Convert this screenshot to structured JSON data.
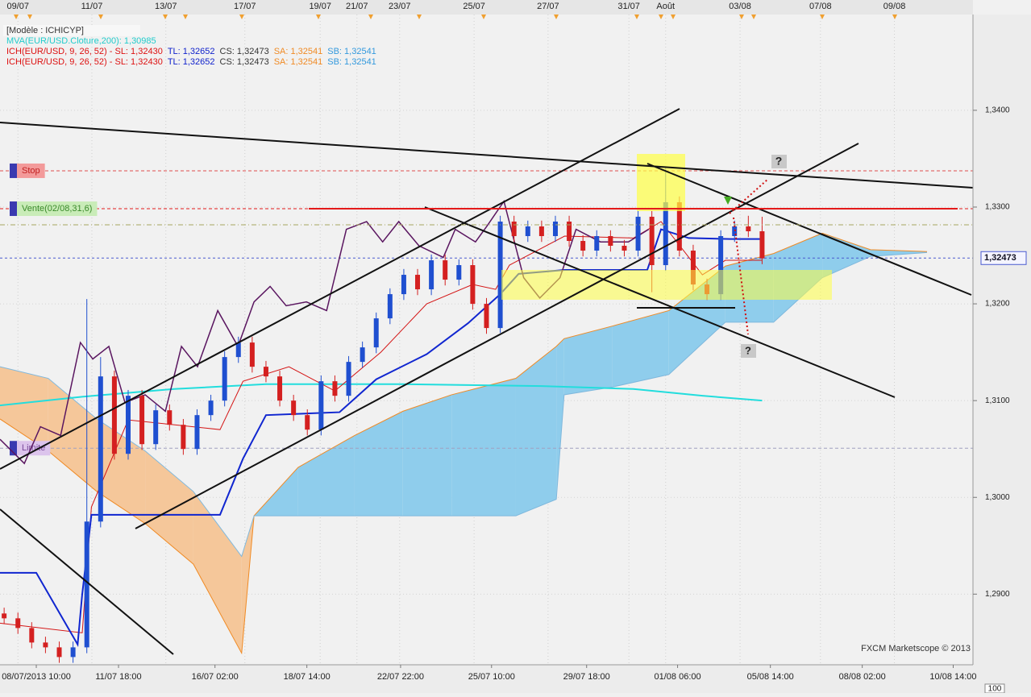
{
  "chart_data": {
    "type": "candlestick",
    "legend": [
      {
        "parts": [
          {
            "text": "[Modèle : ICHICYP]",
            "color": "#333333"
          }
        ]
      },
      {
        "parts": [
          {
            "text": "MVA(EUR/USD.Cloture,200): 1,30985",
            "color": "#22cccc"
          }
        ]
      },
      {
        "parts": [
          {
            "text": "ICH(EUR/USD, 9, 26, 52) -  SL: 1,32430",
            "color": "#dd1111"
          },
          {
            "text": "TL: 1,32652",
            "color": "#1122cc"
          },
          {
            "text": "CS: 1,32473",
            "color": "#333333"
          },
          {
            "text": "SA: 1,32541",
            "color": "#f08a24"
          },
          {
            "text": "SB: 1,32541",
            "color": "#3399dd"
          }
        ]
      },
      {
        "parts": [
          {
            "text": "ICH(EUR/USD, 9, 26, 52) -  SL: 1,32430",
            "color": "#dd1111"
          },
          {
            "text": "TL: 1,32652",
            "color": "#1122cc"
          },
          {
            "text": "CS: 1,32473",
            "color": "#333333"
          },
          {
            "text": "SA: 1,32541",
            "color": "#f08a24"
          },
          {
            "text": "SB: 1,32541",
            "color": "#3399dd"
          }
        ]
      }
    ],
    "up_color": "#1f4fd0",
    "down_color": "#d42020",
    "x": [
      -7,
      -4,
      -1,
      2,
      5,
      8,
      11,
      14,
      17,
      20,
      23,
      26,
      29,
      32,
      35,
      38,
      41,
      44,
      47,
      50,
      53,
      56,
      59,
      62,
      65,
      68,
      71,
      74,
      77,
      80,
      83,
      86,
      89,
      92,
      95,
      98,
      101,
      104,
      107,
      110,
      113,
      116,
      119,
      122,
      125,
      128,
      131,
      134,
      137,
      140,
      143,
      146,
      149,
      152,
      155,
      158
    ],
    "open": [
      1.288,
      1.2875,
      1.2865,
      1.285,
      1.2845,
      1.2835,
      1.2845,
      1.2975,
      1.3125,
      1.3045,
      1.3105,
      1.3055,
      1.309,
      1.3075,
      1.305,
      1.3085,
      1.31,
      1.3145,
      1.316,
      1.3135,
      1.3125,
      1.31,
      1.3085,
      1.307,
      1.312,
      1.3105,
      1.314,
      1.3155,
      1.3185,
      1.321,
      1.323,
      1.3215,
      1.3245,
      1.3225,
      1.324,
      1.32,
      1.3175,
      1.3285,
      1.327,
      1.328,
      1.327,
      1.3285,
      1.3265,
      1.3255,
      1.327,
      1.326,
      1.3255,
      1.329,
      1.324,
      1.3305,
      1.3255,
      1.322,
      1.321,
      1.327,
      1.328,
      1.3275
    ],
    "high": [
      1.2886,
      1.2881,
      1.2871,
      1.2856,
      1.2851,
      1.2851,
      1.3205,
      1.3145,
      1.3131,
      1.3111,
      1.3111,
      1.3096,
      1.3096,
      1.3081,
      1.3091,
      1.3106,
      1.3151,
      1.3166,
      1.3166,
      1.3141,
      1.3131,
      1.3106,
      1.3091,
      1.3126,
      1.3126,
      1.3146,
      1.3161,
      1.3191,
      1.3216,
      1.3236,
      1.3236,
      1.3251,
      1.3251,
      1.3246,
      1.3246,
      1.3206,
      1.3291,
      1.3291,
      1.3286,
      1.3286,
      1.3291,
      1.3291,
      1.3271,
      1.3276,
      1.3276,
      1.3266,
      1.3296,
      1.3296,
      1.3342,
      1.3311,
      1.3261,
      1.3226,
      1.3276,
      1.3286,
      1.3291,
      1.329
    ],
    "low": [
      1.2869,
      1.2859,
      1.2844,
      1.2839,
      1.2829,
      1.2829,
      1.2839,
      1.2969,
      1.3039,
      1.3039,
      1.3049,
      1.3049,
      1.3069,
      1.3044,
      1.3044,
      1.3079,
      1.3094,
      1.3139,
      1.3129,
      1.3119,
      1.3094,
      1.3079,
      1.3064,
      1.3064,
      1.3099,
      1.3099,
      1.3134,
      1.3149,
      1.3179,
      1.3204,
      1.3209,
      1.3209,
      1.3219,
      1.3219,
      1.3194,
      1.3169,
      1.317,
      1.3264,
      1.3264,
      1.3264,
      1.3264,
      1.3259,
      1.3249,
      1.3249,
      1.3254,
      1.3249,
      1.3249,
      1.3212,
      1.3234,
      1.3249,
      1.3214,
      1.3204,
      1.3204,
      1.3264,
      1.3269,
      1.3241
    ],
    "close": [
      1.2875,
      1.2865,
      1.285,
      1.2845,
      1.2835,
      1.2845,
      1.2975,
      1.3125,
      1.3045,
      1.3105,
      1.3055,
      1.309,
      1.3075,
      1.305,
      1.3085,
      1.31,
      1.3145,
      1.316,
      1.3135,
      1.3125,
      1.31,
      1.3085,
      1.307,
      1.312,
      1.3105,
      1.314,
      1.3155,
      1.3185,
      1.321,
      1.323,
      1.3215,
      1.3245,
      1.3225,
      1.324,
      1.32,
      1.3175,
      1.3285,
      1.327,
      1.328,
      1.327,
      1.3285,
      1.3265,
      1.3255,
      1.327,
      1.326,
      1.3255,
      1.329,
      1.324,
      1.3305,
      1.3255,
      1.322,
      1.321,
      1.327,
      1.328,
      1.3275,
      1.3247
    ],
    "cloud": {
      "x": [
        -7.9,
        2.6,
        13.2,
        23.7,
        34.2,
        44.7,
        47.4,
        57.0,
        69.3,
        79.8,
        90.4,
        104.4,
        113.2,
        114.9,
        125.4,
        137.7,
        150.0,
        160.5,
        171.1,
        181.6,
        193.9
      ],
      "sa": [
        1.3081,
        1.3048,
        1.3006,
        1.2973,
        1.2931,
        1.2839,
        1.2981,
        1.3031,
        1.3064,
        1.3089,
        1.3106,
        1.3123,
        1.3156,
        1.3164,
        1.3177,
        1.3193,
        1.3239,
        1.3252,
        1.3273,
        1.3256,
        1.3254
      ],
      "sb": [
        1.3135,
        1.3123,
        1.3081,
        1.3048,
        1.3006,
        1.2939,
        1.2981,
        1.2981,
        1.2981,
        1.2981,
        1.2981,
        1.2981,
        1.2998,
        1.3106,
        1.3114,
        1.3127,
        1.3181,
        1.3181,
        1.3227,
        1.3249,
        1.3253
      ],
      "sa_color": "#f08a24",
      "sb_color": "#7fb8dd",
      "up_fill": "#8fcdec",
      "down_fill": "#f5c79a"
    },
    "series": [
      {
        "color": "#22dddd",
        "width": 2,
        "x": [
          -8,
          10,
          30,
          50,
          80,
          110,
          130,
          145,
          158
        ],
        "values": [
          1.3095,
          1.3104,
          1.3112,
          1.3117,
          1.3117,
          1.3115,
          1.3112,
          1.3105,
          1.31
        ]
      },
      {
        "color": "#d41414",
        "width": 1,
        "x": [
          -8,
          10,
          12,
          20,
          40,
          45,
          55,
          65,
          75,
          85,
          95,
          100,
          103,
          115,
          130,
          136,
          145,
          150,
          158
        ],
        "values": [
          1.287,
          1.286,
          1.299,
          1.308,
          1.307,
          1.312,
          1.3135,
          1.311,
          1.315,
          1.32,
          1.322,
          1.3215,
          1.324,
          1.327,
          1.3268,
          1.3285,
          1.323,
          1.3245,
          1.3245
        ]
      },
      {
        "color": "#1026d0",
        "width": 2,
        "x": [
          -8,
          0,
          9,
          10,
          12,
          40,
          45,
          50,
          66,
          74,
          85,
          94,
          101,
          105,
          115,
          133,
          136,
          142,
          151,
          158
        ],
        "values": [
          1.2922,
          1.2922,
          1.2848,
          1.29,
          1.2982,
          1.2982,
          1.304,
          1.3085,
          1.3088,
          1.3122,
          1.3148,
          1.318,
          1.321,
          1.3231,
          1.3235,
          1.3235,
          1.3277,
          1.3268,
          1.3267,
          1.3267
        ]
      },
      {
        "color": "#5a1660",
        "width": 1.5,
        "x": [
          -7.9,
          -2.6,
          0.9,
          5.3,
          9.6,
          12.3,
          15.8,
          19.3,
          23.7,
          28.1,
          31.6,
          35.1,
          39.5,
          43.9,
          47.4,
          50.9,
          54.4,
          58.8,
          63.2,
          67.5,
          71.9,
          75.4,
          78.9,
          83.3,
          88.6,
          91.2,
          95.6,
          98.2,
          101.8,
          106.1,
          109.6,
          114.0,
          117.5,
          122.8,
          128.9,
          133.3
        ],
        "values": [
          1.306,
          1.3035,
          1.3073,
          1.3064,
          1.316,
          1.3143,
          1.3156,
          1.3098,
          1.3106,
          1.3089,
          1.3156,
          1.3135,
          1.3193,
          1.3156,
          1.3202,
          1.3218,
          1.3198,
          1.3202,
          1.3193,
          1.3277,
          1.3285,
          1.3264,
          1.3285,
          1.326,
          1.3248,
          1.3277,
          1.3264,
          1.3281,
          1.3306,
          1.3227,
          1.3206,
          1.3227,
          1.3277,
          1.3264,
          1.3264,
          1.3277
        ]
      }
    ],
    "levels": [
      {
        "label": "Stop",
        "value": 1.33375,
        "color": "#e05050",
        "label_bg": "#f39a9a",
        "label_color": "#c02020"
      },
      {
        "label": "Vente(02/08,31,6)",
        "value": 1.32983,
        "color": "#e41a1a",
        "label_bg": "#c9ecb8",
        "label_color": "#3a8a2a"
      },
      {
        "label": "Limite",
        "value": 1.30508,
        "color": "#a0a0c0",
        "label_bg": "#dcc4ec",
        "label_color": "#7a4a9a"
      }
    ],
    "current_price": {
      "value": 1.32473,
      "label": "1,32473",
      "color": "#4a5ad0"
    },
    "xlim": [
      -7.9,
      203.9
    ],
    "ylim": [
      1.2827,
      1.3499
    ],
    "xticks": [
      {
        "value": 0,
        "label": "08/07/2013 10:00"
      },
      {
        "value": 17.9,
        "label": "11/07 18:00"
      },
      {
        "value": 38.9,
        "label": "16/07 02:00"
      },
      {
        "value": 58.9,
        "label": "18/07 14:00"
      },
      {
        "value": 79.3,
        "label": "22/07 22:00"
      },
      {
        "value": 99.1,
        "label": "25/07 10:00"
      },
      {
        "value": 119.8,
        "label": "29/07 18:00"
      },
      {
        "value": 139.6,
        "label": "01/08 06:00"
      },
      {
        "value": 159.8,
        "label": "05/08 14:00"
      },
      {
        "value": 179.8,
        "label": "08/08 02:00"
      },
      {
        "value": 199.6,
        "label": "10/08 14:00"
      }
    ],
    "x2ticks": [
      {
        "value": -4.0,
        "label": "09/07"
      },
      {
        "value": 12.1,
        "label": "11/07"
      },
      {
        "value": 28.2,
        "label": "13/07"
      },
      {
        "value": 45.4,
        "label": "17/07"
      },
      {
        "value": 61.8,
        "label": "19/07"
      },
      {
        "value": 69.8,
        "label": "21/07"
      },
      {
        "value": 79.1,
        "label": "23/07"
      },
      {
        "value": 95.3,
        "label": "25/07"
      },
      {
        "value": 111.4,
        "label": "27/07"
      },
      {
        "value": 129.0,
        "label": "31/07"
      },
      {
        "value": 137.0,
        "label": "Août"
      },
      {
        "value": 153.2,
        "label": "03/08"
      },
      {
        "value": 170.7,
        "label": "07/08"
      },
      {
        "value": 186.8,
        "label": "09/08"
      }
    ],
    "yticks": [
      {
        "value": 1.29,
        "label": "1,2900"
      },
      {
        "value": 1.3,
        "label": "1,3000"
      },
      {
        "value": 1.31,
        "label": "1,3100"
      },
      {
        "value": 1.32,
        "label": "1,3200"
      },
      {
        "value": 1.33,
        "label": "1,3300"
      },
      {
        "value": 1.34,
        "label": "1,3400"
      }
    ],
    "grid": true,
    "annotations": [
      "?",
      "?"
    ],
    "watermark": "FXCM Marketscope © 2013",
    "zoom": "100"
  }
}
